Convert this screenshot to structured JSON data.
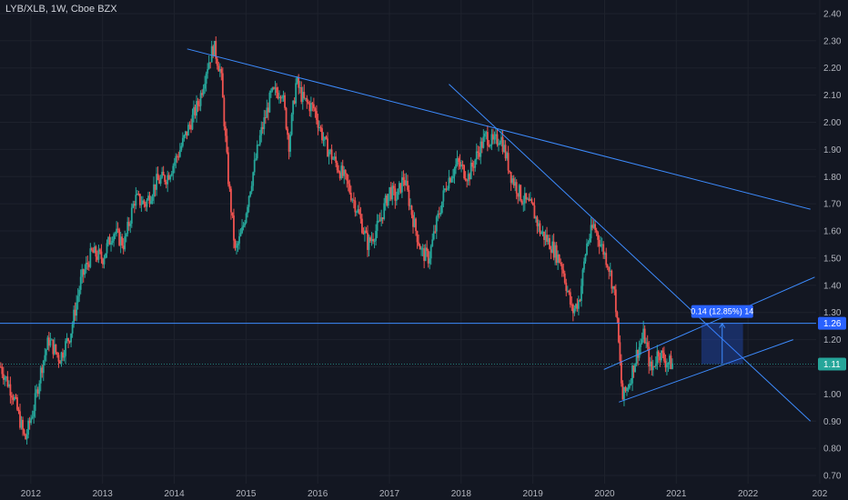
{
  "header": {
    "symbol": "LYB/XLB,",
    "interval": "1W,",
    "exchange": "Cboe BZX"
  },
  "colors": {
    "background": "#131722",
    "up": "#26a69a",
    "down": "#ef5350",
    "trendline": "#2962ff",
    "trendline_light": "#3d8bfd",
    "price_badge": "#26a69a",
    "hline_badge": "#2962ff"
  },
  "chart_data": {
    "type": "candlestick",
    "title": "",
    "xlabel": "",
    "ylabel": "",
    "y_ticks": [
      "2.40",
      "2.30",
      "2.20",
      "2.10",
      "2.00",
      "1.90",
      "1.80",
      "1.70",
      "1.60",
      "1.50",
      "1.40",
      "1.30",
      "1.20",
      "1.10",
      "1.00",
      "0.90",
      "0.80",
      "0.70"
    ],
    "x_ticks": [
      "2012",
      "2013",
      "2014",
      "2015",
      "2016",
      "2017",
      "2018",
      "2019",
      "2020",
      "2021",
      "2022",
      "202"
    ],
    "ylim": [
      0.67,
      2.45
    ],
    "xlim": [
      2011.57,
      2022.95
    ],
    "grid": true,
    "price_path": [
      [
        2011.58,
        1.1
      ],
      [
        2011.75,
        1.0
      ],
      [
        2011.92,
        0.83
      ],
      [
        2012.05,
        0.96
      ],
      [
        2012.15,
        1.1
      ],
      [
        2012.25,
        1.2
      ],
      [
        2012.4,
        1.13
      ],
      [
        2012.55,
        1.22
      ],
      [
        2012.7,
        1.42
      ],
      [
        2012.85,
        1.52
      ],
      [
        2013.0,
        1.5
      ],
      [
        2013.15,
        1.6
      ],
      [
        2013.3,
        1.55
      ],
      [
        2013.45,
        1.72
      ],
      [
        2013.6,
        1.7
      ],
      [
        2013.75,
        1.78
      ],
      [
        2013.9,
        1.8
      ],
      [
        2014.05,
        1.88
      ],
      [
        2014.2,
        1.98
      ],
      [
        2014.35,
        2.08
      ],
      [
        2014.45,
        2.2
      ],
      [
        2014.55,
        2.28
      ],
      [
        2014.65,
        2.18
      ],
      [
        2014.75,
        1.8
      ],
      [
        2014.85,
        1.52
      ],
      [
        2014.95,
        1.6
      ],
      [
        2015.05,
        1.75
      ],
      [
        2015.2,
        1.95
      ],
      [
        2015.35,
        2.1
      ],
      [
        2015.5,
        2.12
      ],
      [
        2015.6,
        1.92
      ],
      [
        2015.7,
        2.15
      ],
      [
        2015.8,
        2.08
      ],
      [
        2015.95,
        2.05
      ],
      [
        2016.1,
        1.92
      ],
      [
        2016.25,
        1.85
      ],
      [
        2016.4,
        1.78
      ],
      [
        2016.55,
        1.68
      ],
      [
        2016.7,
        1.55
      ],
      [
        2016.85,
        1.62
      ],
      [
        2017.0,
        1.75
      ],
      [
        2017.1,
        1.72
      ],
      [
        2017.2,
        1.8
      ],
      [
        2017.35,
        1.62
      ],
      [
        2017.45,
        1.52
      ],
      [
        2017.55,
        1.5
      ],
      [
        2017.65,
        1.62
      ],
      [
        2017.8,
        1.78
      ],
      [
        2017.95,
        1.85
      ],
      [
        2018.1,
        1.8
      ],
      [
        2018.25,
        1.9
      ],
      [
        2018.35,
        1.95
      ],
      [
        2018.45,
        1.92
      ],
      [
        2018.55,
        1.95
      ],
      [
        2018.7,
        1.8
      ],
      [
        2018.85,
        1.72
      ],
      [
        2019.0,
        1.68
      ],
      [
        2019.1,
        1.6
      ],
      [
        2019.25,
        1.55
      ],
      [
        2019.4,
        1.48
      ],
      [
        2019.55,
        1.3
      ],
      [
        2019.65,
        1.35
      ],
      [
        2019.75,
        1.55
      ],
      [
        2019.85,
        1.62
      ],
      [
        2019.95,
        1.55
      ],
      [
        2020.05,
        1.48
      ],
      [
        2020.15,
        1.35
      ],
      [
        2020.25,
        0.98
      ],
      [
        2020.35,
        1.05
      ],
      [
        2020.45,
        1.15
      ],
      [
        2020.55,
        1.22
      ],
      [
        2020.65,
        1.08
      ],
      [
        2020.75,
        1.16
      ],
      [
        2020.85,
        1.12
      ],
      [
        2020.95,
        1.11
      ]
    ],
    "trendlines": [
      {
        "from": [
          2014.18,
          2.27
        ],
        "to": [
          2022.87,
          1.68
        ]
      },
      {
        "from": [
          2017.83,
          2.14
        ],
        "to": [
          2022.87,
          0.9
        ]
      },
      {
        "from": [
          2019.99,
          1.09
        ],
        "to": [
          2022.93,
          1.43
        ]
      },
      {
        "from": [
          2020.2,
          0.97
        ],
        "to": [
          2022.63,
          1.2
        ]
      }
    ],
    "horizontal_line": {
      "value": 1.26,
      "label": "1.26"
    },
    "last_price": {
      "value": 1.11,
      "label": "1.11"
    },
    "measure": {
      "label": "0.14 (12.85%) 14",
      "x_start": 2021.35,
      "x_end": 2021.93,
      "y_low": 1.11,
      "y_high": 1.26
    }
  }
}
